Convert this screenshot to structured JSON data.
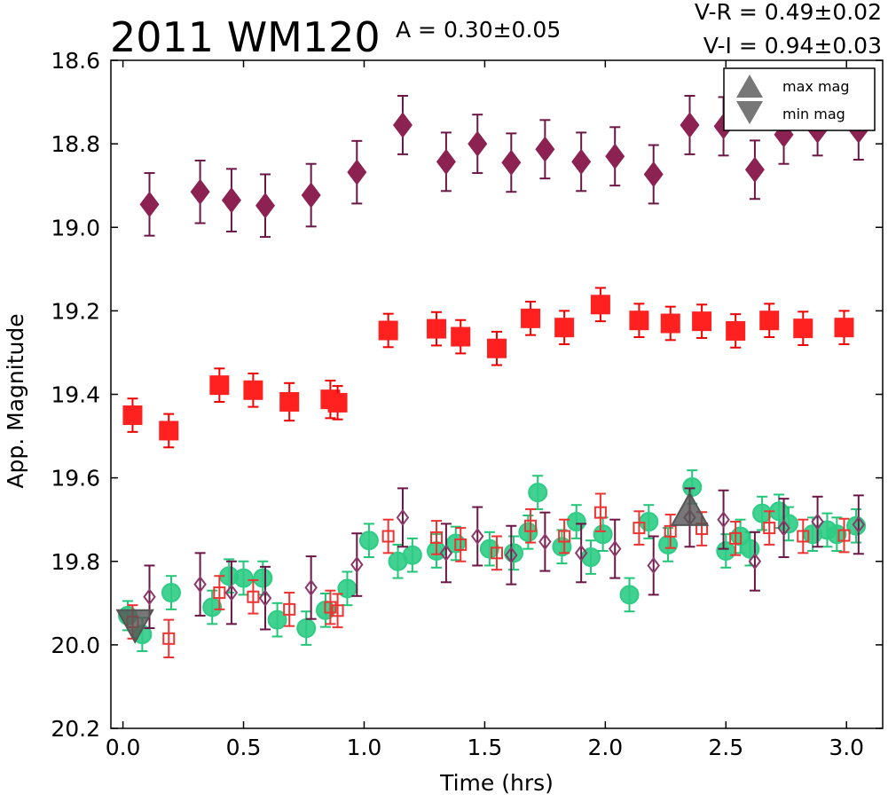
{
  "chart_data": {
    "type": "scatter",
    "title": "2011 WM120",
    "annotations": {
      "amplitude": "A  = 0.30±0.05",
      "v_r": "V-R = 0.49±0.02",
      "v_i": "V-I  = 0.94±0.03"
    },
    "xlabel": "Time (hrs)",
    "ylabel": "App. Magnitude",
    "xlim": [
      -0.05,
      3.15
    ],
    "ylim": [
      20.2,
      18.6
    ],
    "y_inverted": true,
    "x_ticks": [
      "0.0",
      "0.5",
      "1.0",
      "1.5",
      "2.0",
      "2.5",
      "3.0"
    ],
    "y_ticks": [
      "18.6",
      "18.8",
      "19.0",
      "19.2",
      "19.4",
      "19.6",
      "19.8",
      "20.0",
      "20.2"
    ],
    "grid": false,
    "legend": {
      "placement": "top-right",
      "entries": [
        {
          "label": "max mag",
          "marker": "triangle-up",
          "color": "#777777"
        },
        {
          "label": "min mag",
          "marker": "triangle-down",
          "color": "#777777"
        }
      ]
    },
    "series": [
      {
        "marker": "diamond",
        "color": "#8b2252",
        "errcolor": "#6b1645",
        "filled": true,
        "points": [
          [
            0.11,
            18.945,
            0.075
          ],
          [
            0.32,
            18.915,
            0.075
          ],
          [
            0.45,
            18.935,
            0.075
          ],
          [
            0.59,
            18.948,
            0.075
          ],
          [
            0.78,
            18.923,
            0.075
          ],
          [
            0.97,
            18.868,
            0.075
          ],
          [
            1.16,
            18.755,
            0.07
          ],
          [
            1.34,
            18.843,
            0.07
          ],
          [
            1.47,
            18.8,
            0.07
          ],
          [
            1.61,
            18.845,
            0.07
          ],
          [
            1.75,
            18.813,
            0.07
          ],
          [
            1.9,
            18.843,
            0.07
          ],
          [
            2.04,
            18.83,
            0.07
          ],
          [
            2.2,
            18.873,
            0.07
          ],
          [
            2.35,
            18.755,
            0.07
          ],
          [
            2.49,
            18.758,
            0.07
          ],
          [
            2.62,
            18.862,
            0.07
          ],
          [
            2.74,
            18.778,
            0.07
          ],
          [
            2.88,
            18.768,
            0.06
          ],
          [
            3.05,
            18.768,
            0.07
          ]
        ]
      },
      {
        "marker": "square",
        "color": "#ff2020",
        "errcolor": "#ee0000",
        "filled": true,
        "points": [
          [
            0.04,
            19.45,
            0.04
          ],
          [
            0.19,
            19.487,
            0.04
          ],
          [
            0.4,
            19.378,
            0.04
          ],
          [
            0.54,
            19.39,
            0.04
          ],
          [
            0.69,
            19.418,
            0.045
          ],
          [
            0.86,
            19.412,
            0.045
          ],
          [
            0.89,
            19.42,
            0.04
          ],
          [
            1.1,
            19.247,
            0.04
          ],
          [
            1.3,
            19.243,
            0.04
          ],
          [
            1.4,
            19.262,
            0.04
          ],
          [
            1.55,
            19.29,
            0.04
          ],
          [
            1.69,
            19.218,
            0.04
          ],
          [
            1.83,
            19.24,
            0.04
          ],
          [
            1.98,
            19.185,
            0.04
          ],
          [
            2.14,
            19.223,
            0.04
          ],
          [
            2.27,
            19.23,
            0.04
          ],
          [
            2.4,
            19.225,
            0.04
          ],
          [
            2.54,
            19.248,
            0.04
          ],
          [
            2.68,
            19.223,
            0.04
          ],
          [
            2.82,
            19.242,
            0.04
          ],
          [
            2.99,
            19.24,
            0.04
          ]
        ]
      },
      {
        "marker": "circle",
        "color": "#2ecc85",
        "errcolor": "#22c577",
        "filled": true,
        "points": [
          [
            0.02,
            19.93,
            0.035
          ],
          [
            0.08,
            19.975,
            0.04
          ],
          [
            0.2,
            19.875,
            0.04
          ],
          [
            0.37,
            19.91,
            0.04
          ],
          [
            0.44,
            19.835,
            0.04
          ],
          [
            0.5,
            19.84,
            0.04
          ],
          [
            0.58,
            19.84,
            0.04
          ],
          [
            0.64,
            19.94,
            0.04
          ],
          [
            0.76,
            19.96,
            0.04
          ],
          [
            0.84,
            19.917,
            0.04
          ],
          [
            0.93,
            19.865,
            0.04
          ],
          [
            1.02,
            19.75,
            0.04
          ],
          [
            1.14,
            19.8,
            0.04
          ],
          [
            1.2,
            19.785,
            0.04
          ],
          [
            1.3,
            19.775,
            0.04
          ],
          [
            1.38,
            19.757,
            0.04
          ],
          [
            1.52,
            19.77,
            0.04
          ],
          [
            1.62,
            19.78,
            0.04
          ],
          [
            1.68,
            19.73,
            0.04
          ],
          [
            1.72,
            19.635,
            0.04
          ],
          [
            1.82,
            19.765,
            0.04
          ],
          [
            1.88,
            19.705,
            0.04
          ],
          [
            1.94,
            19.79,
            0.04
          ],
          [
            1.99,
            19.735,
            0.04
          ],
          [
            2.1,
            19.88,
            0.04
          ],
          [
            2.18,
            19.705,
            0.04
          ],
          [
            2.26,
            19.76,
            0.04
          ],
          [
            2.36,
            19.622,
            0.04
          ],
          [
            2.5,
            19.775,
            0.04
          ],
          [
            2.56,
            19.74,
            0.04
          ],
          [
            2.6,
            19.77,
            0.04
          ],
          [
            2.65,
            19.685,
            0.04
          ],
          [
            2.72,
            19.68,
            0.04
          ],
          [
            2.76,
            19.71,
            0.04
          ],
          [
            2.86,
            19.735,
            0.04
          ],
          [
            2.92,
            19.725,
            0.04
          ],
          [
            2.96,
            19.735,
            0.04
          ],
          [
            3.04,
            19.715,
            0.04
          ]
        ]
      },
      {
        "marker": "square",
        "color": "#ee3333",
        "errcolor": "#ee3333",
        "filled": false,
        "points": [
          [
            0.04,
            19.945,
            0.04
          ],
          [
            0.19,
            19.985,
            0.045
          ],
          [
            0.4,
            19.875,
            0.04
          ],
          [
            0.54,
            19.885,
            0.04
          ],
          [
            0.69,
            19.915,
            0.04
          ],
          [
            0.86,
            19.91,
            0.04
          ],
          [
            0.89,
            19.918,
            0.04
          ],
          [
            1.1,
            19.74,
            0.04
          ],
          [
            1.3,
            19.743,
            0.04
          ],
          [
            1.4,
            19.76,
            0.04
          ],
          [
            1.55,
            19.78,
            0.04
          ],
          [
            1.69,
            19.715,
            0.04
          ],
          [
            1.83,
            19.74,
            0.04
          ],
          [
            1.98,
            19.683,
            0.045
          ],
          [
            2.14,
            19.72,
            0.04
          ],
          [
            2.27,
            19.728,
            0.04
          ],
          [
            2.4,
            19.722,
            0.04
          ],
          [
            2.54,
            19.745,
            0.04
          ],
          [
            2.68,
            19.72,
            0.04
          ],
          [
            2.82,
            19.74,
            0.04
          ],
          [
            2.99,
            19.738,
            0.04
          ]
        ]
      },
      {
        "marker": "diamond",
        "color": "#8b3a6b",
        "errcolor": "#6b1645",
        "filled": false,
        "points": [
          [
            0.11,
            19.885,
            0.075
          ],
          [
            0.32,
            19.855,
            0.075
          ],
          [
            0.45,
            19.875,
            0.075
          ],
          [
            0.59,
            19.888,
            0.075
          ],
          [
            0.78,
            19.863,
            0.075
          ],
          [
            0.97,
            19.808,
            0.075
          ],
          [
            1.16,
            19.695,
            0.07
          ],
          [
            1.34,
            19.78,
            0.07
          ],
          [
            1.47,
            19.74,
            0.07
          ],
          [
            1.61,
            19.785,
            0.07
          ],
          [
            1.75,
            19.753,
            0.07
          ],
          [
            1.9,
            19.78,
            0.07
          ],
          [
            2.04,
            19.77,
            0.07
          ],
          [
            2.2,
            19.81,
            0.07
          ],
          [
            2.35,
            19.695,
            0.07
          ],
          [
            2.49,
            19.7,
            0.07
          ],
          [
            2.62,
            19.8,
            0.07
          ],
          [
            2.74,
            19.72,
            0.07
          ],
          [
            2.88,
            19.705,
            0.06
          ],
          [
            3.05,
            19.712,
            0.07
          ]
        ]
      },
      {
        "marker": "triangle-down",
        "color": "#555555",
        "errcolor": null,
        "filled": true,
        "points": [
          [
            0.05,
            19.955,
            0
          ]
        ]
      },
      {
        "marker": "triangle-up",
        "color": "#555555",
        "errcolor": null,
        "filled": true,
        "points": [
          [
            2.35,
            19.675,
            0
          ]
        ]
      }
    ]
  }
}
